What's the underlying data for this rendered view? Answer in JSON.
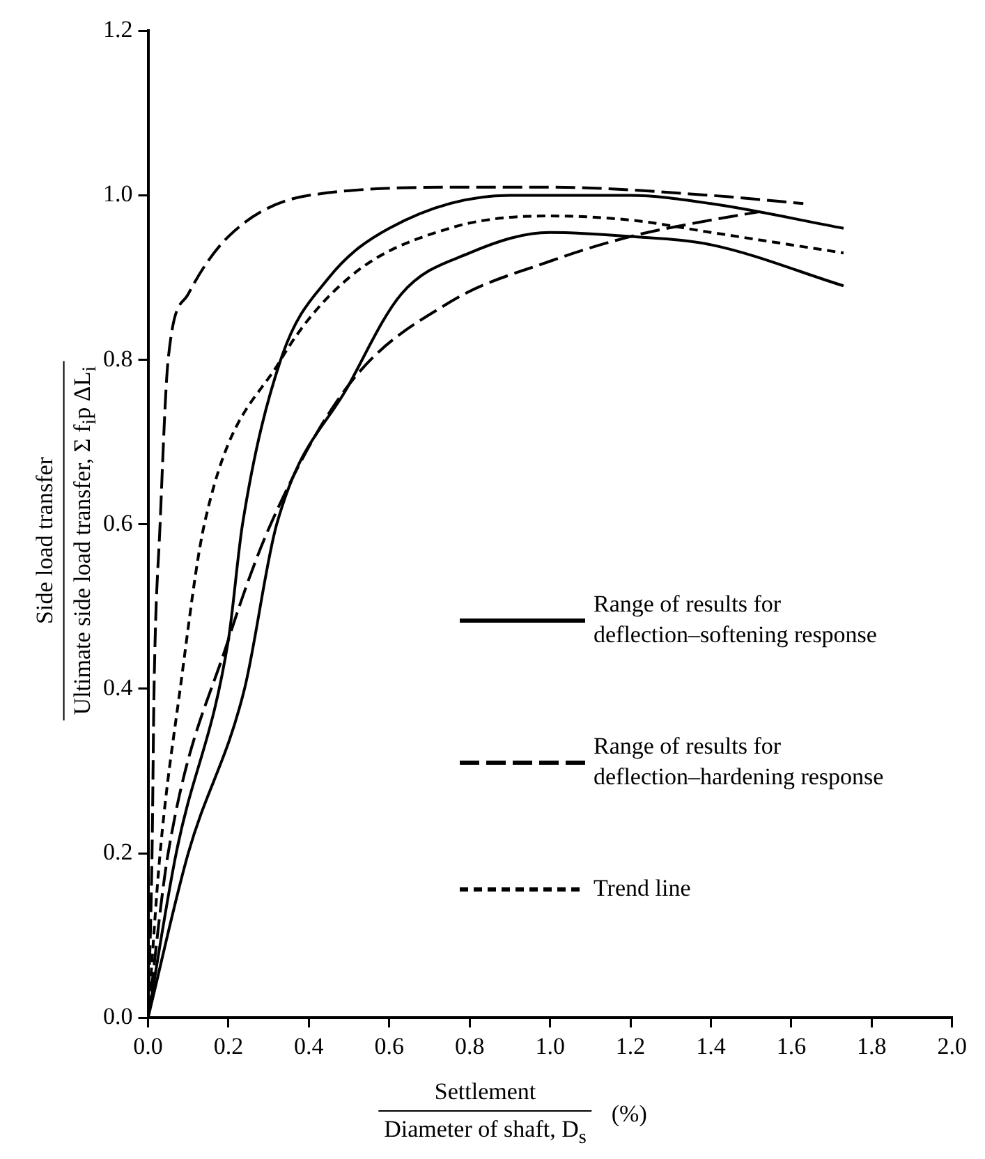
{
  "chart_data": {
    "type": "line",
    "ylabel": "Side load transfer\nUltimate side load transfer, Σ f$_{i}$p ΔL$_{i}$",
    "xlabel": "Settlement\nDiameter of shaft, D$_{s}$\n(%)",
    "xlim": [
      0,
      2
    ],
    "xticks": [
      {
        "value": 0,
        "label": "0.0"
      },
      0.2,
      0.4,
      0.6,
      0.8,
      {
        "value": 1,
        "label": "1.0"
      },
      1.2,
      1.4,
      1.6,
      1.8,
      {
        "value": 2,
        "label": "2.0"
      }
    ],
    "ylim": [
      0,
      1.2
    ],
    "yticks": [
      {
        "value": 0,
        "label": "0.0"
      },
      0.2,
      0.4,
      0.6,
      0.8,
      {
        "value": 1,
        "label": "1.0"
      },
      1.2
    ],
    "grid": false,
    "legend": "right",
    "marker": "none",
    "series": [
      {
        "name": "Range of results for\ndeflection–softening response",
        "color": "#000000",
        "line_style": "solid",
        "x": [
          0,
          0.07,
          0.2,
          0.235,
          0.33,
          0.45,
          0.6,
          0.9,
          1.2,
          1.4,
          1.73
        ],
        "values": [
          0,
          0.2,
          0.46,
          0.6,
          0.8,
          0.9,
          0.96,
          1.0,
          1.0,
          0.99,
          0.96
        ]
      },
      {
        "color": "#000000",
        "line_style": "solid",
        "x": [
          0,
          0.1,
          0.24,
          0.32,
          0.5,
          0.63,
          0.8,
          1.0,
          1.2,
          1.4,
          1.73
        ],
        "values": [
          0,
          0.2,
          0.4,
          0.6,
          0.77,
          0.88,
          0.93,
          0.955,
          0.95,
          0.94,
          0.89
        ]
      },
      {
        "name": "Range of results for\ndeflection–hardening response",
        "color": "#000000",
        "line_style": "dashed",
        "x": [
          0,
          0.01,
          0.015,
          0.03,
          0.05,
          0.1,
          0.2,
          0.4,
          0.8,
          1.0,
          1.4,
          1.63
        ],
        "values": [
          0,
          0.2,
          0.4,
          0.6,
          0.8,
          0.88,
          0.95,
          1.0,
          1.01,
          1.01,
          1.0,
          0.99
        ]
      },
      {
        "color": "#000000",
        "line_style": "dashed",
        "x": [
          0,
          0.05,
          0.2,
          0.305,
          0.5,
          0.75,
          1.0,
          1.2,
          1.4,
          1.52
        ],
        "values": [
          0,
          0.2,
          0.46,
          0.6,
          0.77,
          0.87,
          0.92,
          0.95,
          0.97,
          0.98
        ]
      },
      {
        "name": "Trend line",
        "color": "#000000",
        "line_style": "dotted",
        "x": [
          0,
          0.03,
          0.08,
          0.14,
          0.33,
          0.5,
          0.75,
          1.0,
          1.2,
          1.4,
          1.73
        ],
        "values": [
          0,
          0.2,
          0.4,
          0.6,
          0.8,
          0.9,
          0.96,
          0.975,
          0.97,
          0.955,
          0.93
        ]
      }
    ]
  }
}
